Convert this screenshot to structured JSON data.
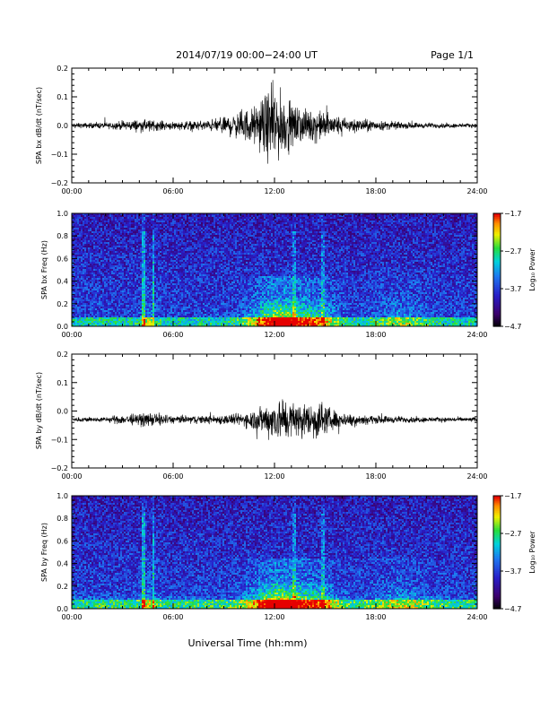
{
  "header": {
    "title": "2014/07/19  00:00−24:00 UT",
    "page": "Page 1/1"
  },
  "xlabel": "Universal Time (hh:mm)",
  "chart_data": [
    {
      "type": "line",
      "ylabel": "SPA bx dB/dt (nT/sec)",
      "ylim": [
        -0.2,
        0.2
      ],
      "yticks": [
        "0.2",
        "0.1",
        "0.0",
        "−0.1",
        "−0.2"
      ],
      "xticks": [
        "00:00",
        "06:00",
        "12:00",
        "18:00",
        "24:00"
      ],
      "xlim_hours": [
        0,
        24
      ],
      "envelope": {
        "baseline": 0.0,
        "hours": [
          0,
          2,
          4,
          6,
          8,
          9,
          10,
          11,
          11.5,
          12,
          12.5,
          13,
          14,
          15,
          16,
          18,
          20,
          22,
          24
        ],
        "amplitude": [
          0.012,
          0.015,
          0.03,
          0.02,
          0.025,
          0.045,
          0.07,
          0.1,
          0.16,
          0.2,
          0.15,
          0.1,
          0.08,
          0.07,
          0.04,
          0.025,
          0.015,
          0.012,
          0.01
        ]
      }
    },
    {
      "type": "heatmap",
      "ylabel": "SPA bx Freq (Hz)",
      "ylim": [
        0.0,
        1.0
      ],
      "yticks": [
        "1.0",
        "0.8",
        "0.6",
        "0.4",
        "0.2",
        "0.0"
      ],
      "xticks": [
        "00:00",
        "06:00",
        "12:00",
        "18:00",
        "24:00"
      ],
      "colorbar": {
        "label": "Log₁₀ Power",
        "ticks": [
          "−1.7",
          "−2.7",
          "−3.7",
          "−4.7"
        ],
        "range": [
          -4.7,
          -1.7
        ]
      }
    },
    {
      "type": "line",
      "ylabel": "SPA by dB/dt (nT/sec)",
      "ylim": [
        -0.2,
        0.2
      ],
      "yticks": [
        "0.2",
        "0.1",
        "0.0",
        "−0.1",
        "−0.2"
      ],
      "xticks": [
        "00:00",
        "06:00",
        "12:00",
        "18:00",
        "24:00"
      ],
      "xlim_hours": [
        0,
        24
      ],
      "envelope": {
        "baseline": -0.03,
        "hours": [
          0,
          2,
          3,
          4,
          5,
          6,
          8,
          10,
          11,
          11.5,
          12,
          12.5,
          13,
          14,
          14.5,
          15,
          16,
          18,
          20,
          22,
          24
        ],
        "amplitude": [
          0.012,
          0.012,
          0.025,
          0.03,
          0.035,
          0.02,
          0.02,
          0.03,
          0.06,
          0.08,
          0.1,
          0.12,
          0.09,
          0.08,
          0.11,
          0.07,
          0.035,
          0.02,
          0.015,
          0.012,
          0.012
        ]
      }
    },
    {
      "type": "heatmap",
      "ylabel": "SPA by Freq (Hz)",
      "ylim": [
        0.0,
        1.0
      ],
      "yticks": [
        "1.0",
        "0.8",
        "0.6",
        "0.4",
        "0.2",
        "0.0"
      ],
      "xticks": [
        "00:00",
        "06:00",
        "12:00",
        "18:00",
        "24:00"
      ],
      "colorbar": {
        "label": "Log₁₀ Power",
        "ticks": [
          "−1.7",
          "−2.7",
          "−3.7",
          "−4.7"
        ],
        "range": [
          -4.7,
          -1.7
        ]
      }
    }
  ]
}
